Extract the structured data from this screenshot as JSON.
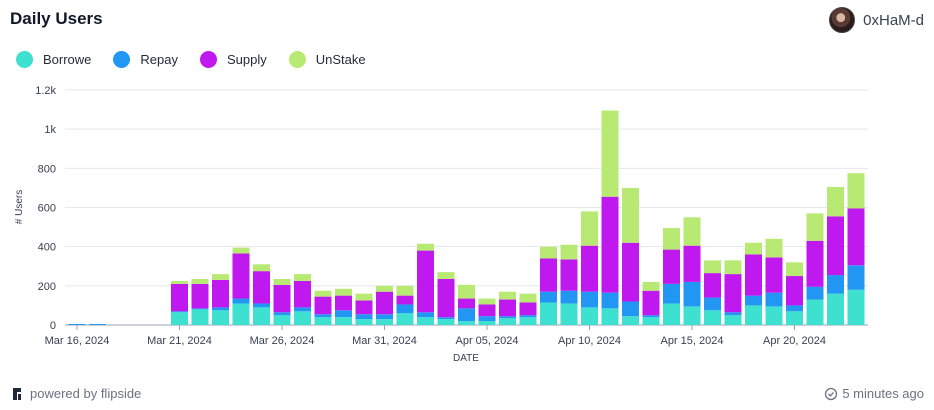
{
  "header": {
    "title": "Daily Users",
    "user_name": "0xHaM-d"
  },
  "footer": {
    "powered_by": "powered by flipside",
    "updated": "5 minutes ago"
  },
  "chart_data": {
    "type": "bar",
    "stacked": true,
    "xlabel": "DATE",
    "ylabel": "# Users",
    "ylim": [
      0,
      1200
    ],
    "y_ticks": [
      0,
      200,
      400,
      600,
      800,
      1000,
      1200
    ],
    "y_tick_labels": [
      "0",
      "200",
      "400",
      "600",
      "800",
      "1k",
      "1.2k"
    ],
    "x_tick_labels": [
      "Mar 16, 2024",
      "Mar 21, 2024",
      "Mar 26, 2024",
      "Mar 31, 2024",
      "Apr 05, 2024",
      "Apr 10, 2024",
      "Apr 15, 2024",
      "Apr 20, 2024"
    ],
    "x_tick_dates": [
      "2024-03-16",
      "2024-03-21",
      "2024-03-26",
      "2024-03-31",
      "2024-04-05",
      "2024-04-10",
      "2024-04-15",
      "2024-04-20"
    ],
    "legend_position": "top-left",
    "grid": true,
    "categories": [
      "2024-03-16",
      "2024-03-17",
      "2024-03-18",
      "2024-03-19",
      "2024-03-20",
      "2024-03-21",
      "2024-03-22",
      "2024-03-23",
      "2024-03-24",
      "2024-03-25",
      "2024-03-26",
      "2024-03-27",
      "2024-03-28",
      "2024-03-29",
      "2024-03-30",
      "2024-03-31",
      "2024-04-01",
      "2024-04-02",
      "2024-04-03",
      "2024-04-04",
      "2024-04-05",
      "2024-04-06",
      "2024-04-07",
      "2024-04-08",
      "2024-04-09",
      "2024-04-10",
      "2024-04-11",
      "2024-04-12",
      "2024-04-13",
      "2024-04-14",
      "2024-04-15",
      "2024-04-16",
      "2024-04-17",
      "2024-04-18",
      "2024-04-19",
      "2024-04-20",
      "2024-04-21",
      "2024-04-22",
      "2024-04-23"
    ],
    "series": [
      {
        "name": "Borrowe",
        "color": "#3ee0cf",
        "values": [
          0,
          0,
          0,
          0,
          0,
          65,
          80,
          75,
          110,
          90,
          50,
          70,
          40,
          40,
          30,
          30,
          60,
          40,
          30,
          20,
          20,
          35,
          40,
          115,
          110,
          90,
          85,
          45,
          40,
          110,
          95,
          75,
          50,
          100,
          95,
          70,
          130,
          160,
          180
        ]
      },
      {
        "name": "Repay",
        "color": "#2196f3",
        "values": [
          5,
          5,
          0,
          0,
          0,
          5,
          5,
          15,
          25,
          20,
          15,
          20,
          15,
          35,
          25,
          25,
          45,
          25,
          10,
          65,
          25,
          10,
          10,
          55,
          65,
          80,
          80,
          75,
          10,
          100,
          125,
          65,
          15,
          50,
          70,
          30,
          65,
          95,
          125
        ]
      },
      {
        "name": "Supply",
        "color": "#c019f0",
        "values": [
          0,
          0,
          0,
          0,
          0,
          140,
          125,
          140,
          230,
          165,
          140,
          135,
          90,
          75,
          70,
          115,
          45,
          315,
          195,
          50,
          60,
          85,
          65,
          170,
          160,
          235,
          490,
          300,
          125,
          175,
          185,
          125,
          195,
          210,
          180,
          150,
          235,
          300,
          290
        ]
      },
      {
        "name": "UnStake",
        "color": "#b8ea73",
        "values": [
          0,
          0,
          0,
          0,
          0,
          15,
          25,
          30,
          30,
          35,
          30,
          35,
          30,
          35,
          35,
          30,
          50,
          35,
          35,
          70,
          30,
          40,
          45,
          60,
          75,
          175,
          440,
          280,
          45,
          110,
          145,
          65,
          70,
          60,
          95,
          70,
          140,
          150,
          180
        ]
      }
    ]
  }
}
